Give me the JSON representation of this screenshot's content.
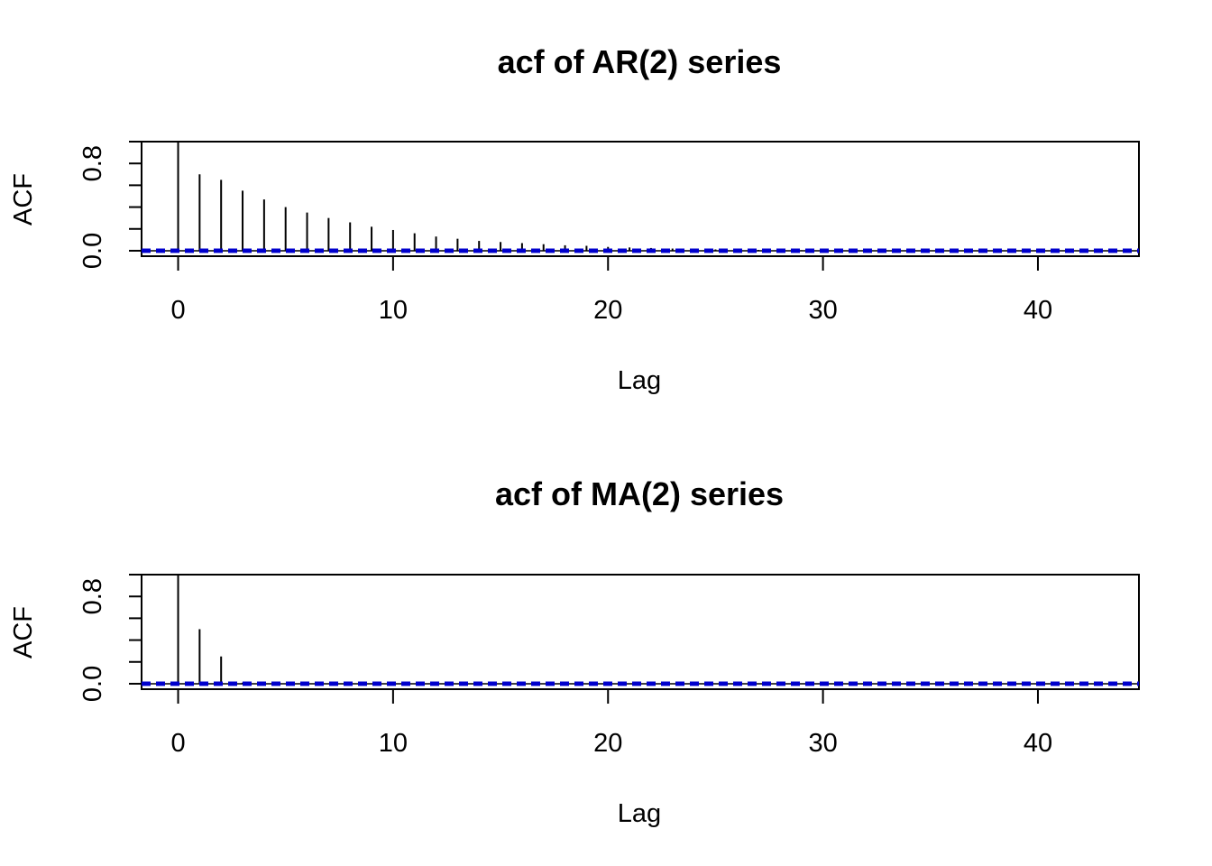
{
  "chart_data": [
    {
      "type": "bar",
      "title": "acf of AR(2) series",
      "xlabel": "Lag",
      "ylabel": "ACF",
      "xlim": [
        -1.7,
        44.7
      ],
      "ylim": [
        -0.05,
        1.0
      ],
      "x_ticks": [
        0,
        10,
        20,
        30,
        40
      ],
      "y_tick_labels": [
        0.0,
        0.8
      ],
      "y_minor_ticks": [
        0.0,
        0.2,
        0.4,
        0.6,
        0.8,
        1.0
      ],
      "confidence_bound": 0.01,
      "confidence_color": "#0000CD",
      "x": [
        0,
        1,
        2,
        3,
        4,
        5,
        6,
        7,
        8,
        9,
        10,
        11,
        12,
        13,
        14,
        15,
        16,
        17,
        18,
        19,
        20,
        21,
        22,
        23,
        24,
        25,
        26,
        27,
        28,
        29,
        30,
        31,
        32,
        33,
        34,
        35,
        36,
        37,
        38,
        39,
        40,
        41,
        42,
        43,
        44
      ],
      "values": [
        1.0,
        0.7,
        0.65,
        0.55,
        0.47,
        0.4,
        0.35,
        0.3,
        0.26,
        0.22,
        0.19,
        0.16,
        0.13,
        0.11,
        0.09,
        0.08,
        0.07,
        0.06,
        0.05,
        0.045,
        0.035,
        0.03,
        0.025,
        0.02,
        0.015,
        0.012,
        0.01,
        0.008,
        0.006,
        0.005,
        0.004,
        0.003,
        0.003,
        0.002,
        0.002,
        0.002,
        0.001,
        0.001,
        0.001,
        0.001,
        0.001,
        0.0,
        0.0,
        0.0,
        0.0
      ]
    },
    {
      "type": "bar",
      "title": "acf of MA(2) series",
      "xlabel": "Lag",
      "ylabel": "ACF",
      "xlim": [
        -1.7,
        44.7
      ],
      "ylim": [
        -0.05,
        1.0
      ],
      "x_ticks": [
        0,
        10,
        20,
        30,
        40
      ],
      "y_tick_labels": [
        0.0,
        0.8
      ],
      "y_minor_ticks": [
        0.0,
        0.2,
        0.4,
        0.6,
        0.8,
        1.0
      ],
      "confidence_bound": 0.01,
      "confidence_color": "#0000CD",
      "x": [
        0,
        1,
        2,
        3,
        4,
        5,
        6,
        7,
        8,
        9,
        10,
        11,
        12,
        13,
        14,
        15,
        16,
        17,
        18,
        19,
        20,
        21,
        22,
        23,
        24,
        25,
        26,
        27,
        28,
        29,
        30,
        31,
        32,
        33,
        34,
        35,
        36,
        37,
        38,
        39,
        40,
        41,
        42,
        43,
        44
      ],
      "values": [
        1.0,
        0.5,
        0.25,
        0.01,
        0.005,
        0.003,
        0.002,
        0.002,
        0.001,
        0.001,
        0.001,
        0.001,
        0.001,
        0.0,
        0.0,
        0.0,
        0.0,
        0.0,
        0.0,
        0.0,
        0.0,
        0.0,
        0.0,
        0.0,
        0.0,
        0.0,
        0.0,
        0.0,
        0.0,
        0.0,
        0.0,
        0.0,
        0.0,
        0.0,
        0.0,
        0.0,
        0.0,
        0.0,
        0.0,
        0.0,
        0.0,
        0.0,
        0.0,
        0.0,
        0.0
      ]
    }
  ]
}
